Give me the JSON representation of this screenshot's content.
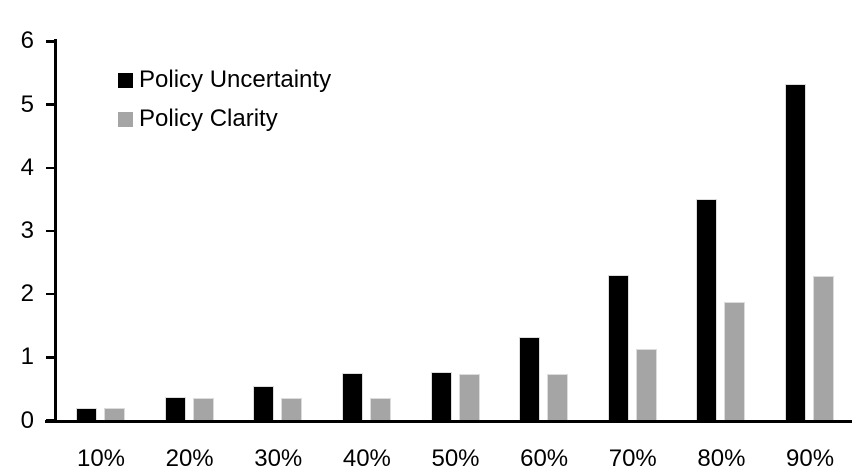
{
  "chart_data": {
    "type": "bar",
    "title": "",
    "xlabel": "",
    "ylabel": "",
    "categories": [
      "10%",
      "20%",
      "30%",
      "40%",
      "50%",
      "60%",
      "70%",
      "80%",
      "90%"
    ],
    "series": [
      {
        "name": "Policy Uncertainty",
        "color": "#000000",
        "values": [
          0.2,
          0.37,
          0.55,
          0.75,
          0.76,
          1.32,
          2.3,
          3.5,
          5.32
        ]
      },
      {
        "name": "Policy Clarity",
        "color": "#a5a5a5",
        "values": [
          0.2,
          0.35,
          0.35,
          0.36,
          0.74,
          0.74,
          1.13,
          1.88,
          2.28
        ]
      }
    ],
    "ylim": [
      0,
      6
    ],
    "yticks": [
      0,
      1,
      2,
      3,
      4,
      5,
      6
    ],
    "grid": false,
    "legend_position": "top-left-inside",
    "axis_color": "#000000",
    "text_color": "#000000",
    "background_color": "#ffffff"
  }
}
